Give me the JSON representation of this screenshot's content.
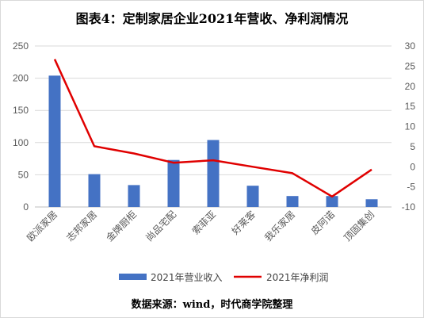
{
  "title": "图表4：定制家居企业2021年营收、净利润情况",
  "source": "数据来源：wind，时代商学院整理",
  "chart_data": {
    "type": "bar",
    "categories": [
      "欧派家居",
      "志邦家居",
      "金牌厨柜",
      "尚品宅配",
      "索菲亚",
      "好莱客",
      "我乐家居",
      "皮阿诺",
      "顶固集创"
    ],
    "series": [
      {
        "name": "2021年营业收入",
        "type": "bar",
        "axis": "left",
        "color": "#4472c4",
        "values": [
          204,
          51,
          34,
          73,
          104,
          33,
          17,
          17,
          12
        ]
      },
      {
        "name": "2021年净利润",
        "type": "line",
        "axis": "right",
        "color": "#e00000",
        "values": [
          26.7,
          5.1,
          3.3,
          1.0,
          1.6,
          0.0,
          -1.6,
          -7.4,
          -0.7
        ]
      }
    ],
    "ylim_left": [
      0,
      250
    ],
    "yticks_left": [
      "0",
      "50",
      "100",
      "150",
      "200",
      "250"
    ],
    "ylim_right": [
      -10,
      30
    ],
    "yticks_right": [
      "-10",
      "-5",
      "0",
      "5",
      "10",
      "15",
      "20",
      "25",
      "30"
    ],
    "grid": true,
    "legend_position": "bottom"
  }
}
